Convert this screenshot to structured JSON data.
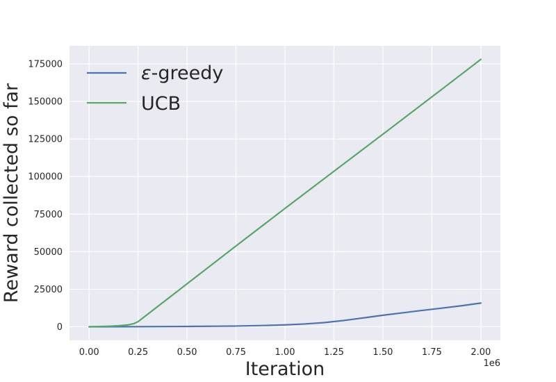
{
  "chart_data": {
    "type": "line",
    "xlabel": "Iteration",
    "ylabel": "Reward collected so far",
    "x_offset_label": "1e6",
    "xlim": [
      -0.1,
      2.1
    ],
    "ylim": [
      -9000,
      187000
    ],
    "x_ticks": [
      0.0,
      0.25,
      0.5,
      0.75,
      1.0,
      1.25,
      1.5,
      1.75,
      2.0
    ],
    "x_tick_labels": [
      "0.00",
      "0.25",
      "0.50",
      "0.75",
      "1.00",
      "1.25",
      "1.50",
      "1.75",
      "2.00"
    ],
    "y_ticks": [
      0,
      25000,
      50000,
      75000,
      100000,
      125000,
      150000,
      175000
    ],
    "y_tick_labels": [
      "0",
      "25000",
      "50000",
      "75000",
      "100000",
      "125000",
      "150000",
      "175000"
    ],
    "grid": true,
    "background": "#eaeaf2",
    "legend_position": "upper-left",
    "series": [
      {
        "name": "ε-greedy",
        "name_prefix": "ε",
        "name_suffix": "-greedy",
        "color": "#4c72b0",
        "x": [
          0.0,
          0.25,
          0.5,
          0.75,
          0.9,
          1.0,
          1.1,
          1.2,
          1.3,
          1.4,
          1.5,
          1.6,
          1.7,
          1.8,
          1.9,
          2.0
        ],
        "y": [
          0,
          100,
          250,
          500,
          900,
          1300,
          1900,
          2800,
          4200,
          5900,
          7700,
          9300,
          10900,
          12400,
          14000,
          15800
        ]
      },
      {
        "name": "UCB",
        "color": "#55a868",
        "x": [
          0.0,
          0.05,
          0.1,
          0.15,
          0.2,
          0.23,
          0.25,
          0.5,
          0.75,
          1.0,
          1.25,
          1.5,
          1.75,
          2.0
        ],
        "y": [
          0,
          200,
          400,
          700,
          1300,
          2200,
          3400,
          28600,
          53800,
          78800,
          103500,
          128200,
          153000,
          178000
        ]
      }
    ]
  }
}
